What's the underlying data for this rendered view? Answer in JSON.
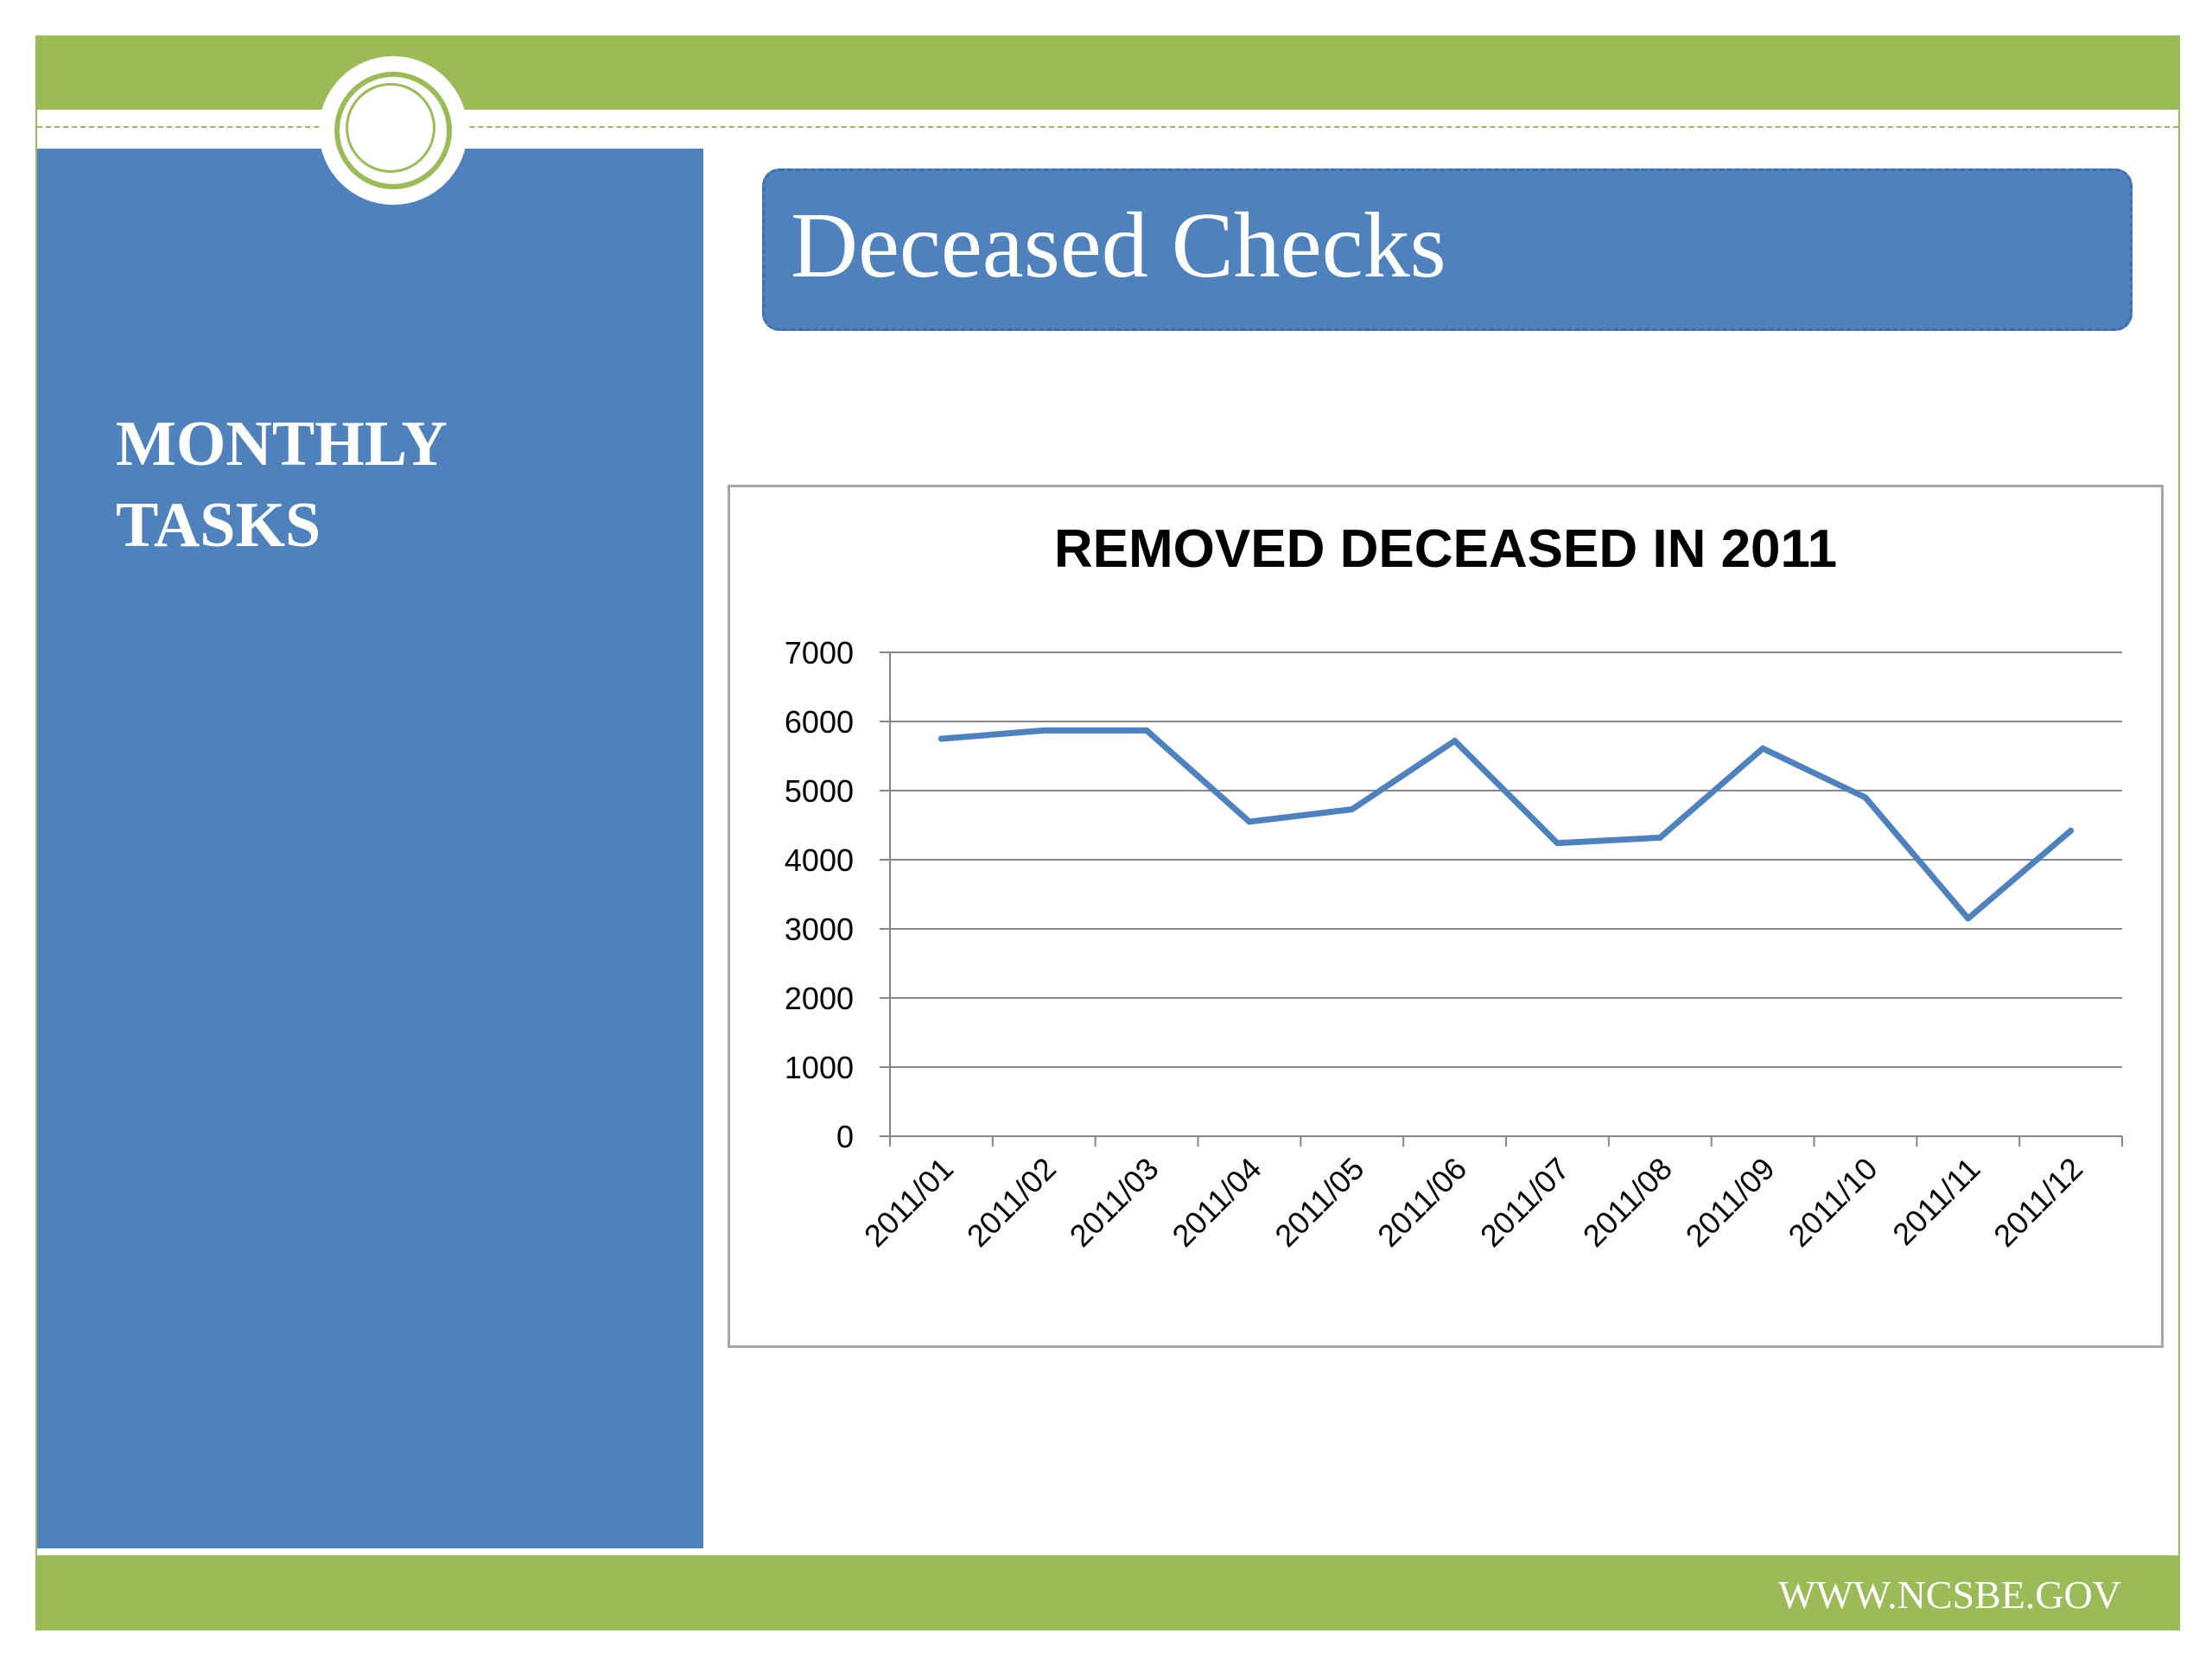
{
  "slide": {
    "section_title_line1": "MONTHLY",
    "section_title_line2": "TASKS",
    "title": "Deceased Checks",
    "footer_url": "WWW.NCSBE.GOV"
  },
  "colors": {
    "green": "#9bbb59",
    "blue": "#4f81bd",
    "series_line": "#4f81bd"
  },
  "chart_data": {
    "type": "line",
    "title": "REMOVED DECEASED IN 2011",
    "xlabel": "",
    "ylabel": "",
    "categories": [
      "2011/01",
      "2011/02",
      "2011/03",
      "2011/04",
      "2011/05",
      "2011/06",
      "2011/07",
      "2011/08",
      "2011/09",
      "2011/10",
      "2011/11",
      "2011/12"
    ],
    "series": [
      {
        "values": [
          5750,
          5870,
          5870,
          4550,
          4730,
          5720,
          4240,
          4320,
          5610,
          4900,
          3150,
          4420
        ]
      }
    ],
    "ylim": [
      0,
      7000
    ],
    "yticks": [
      0,
      1000,
      2000,
      3000,
      4000,
      5000,
      6000,
      7000
    ],
    "grid": true,
    "legend": "none"
  }
}
